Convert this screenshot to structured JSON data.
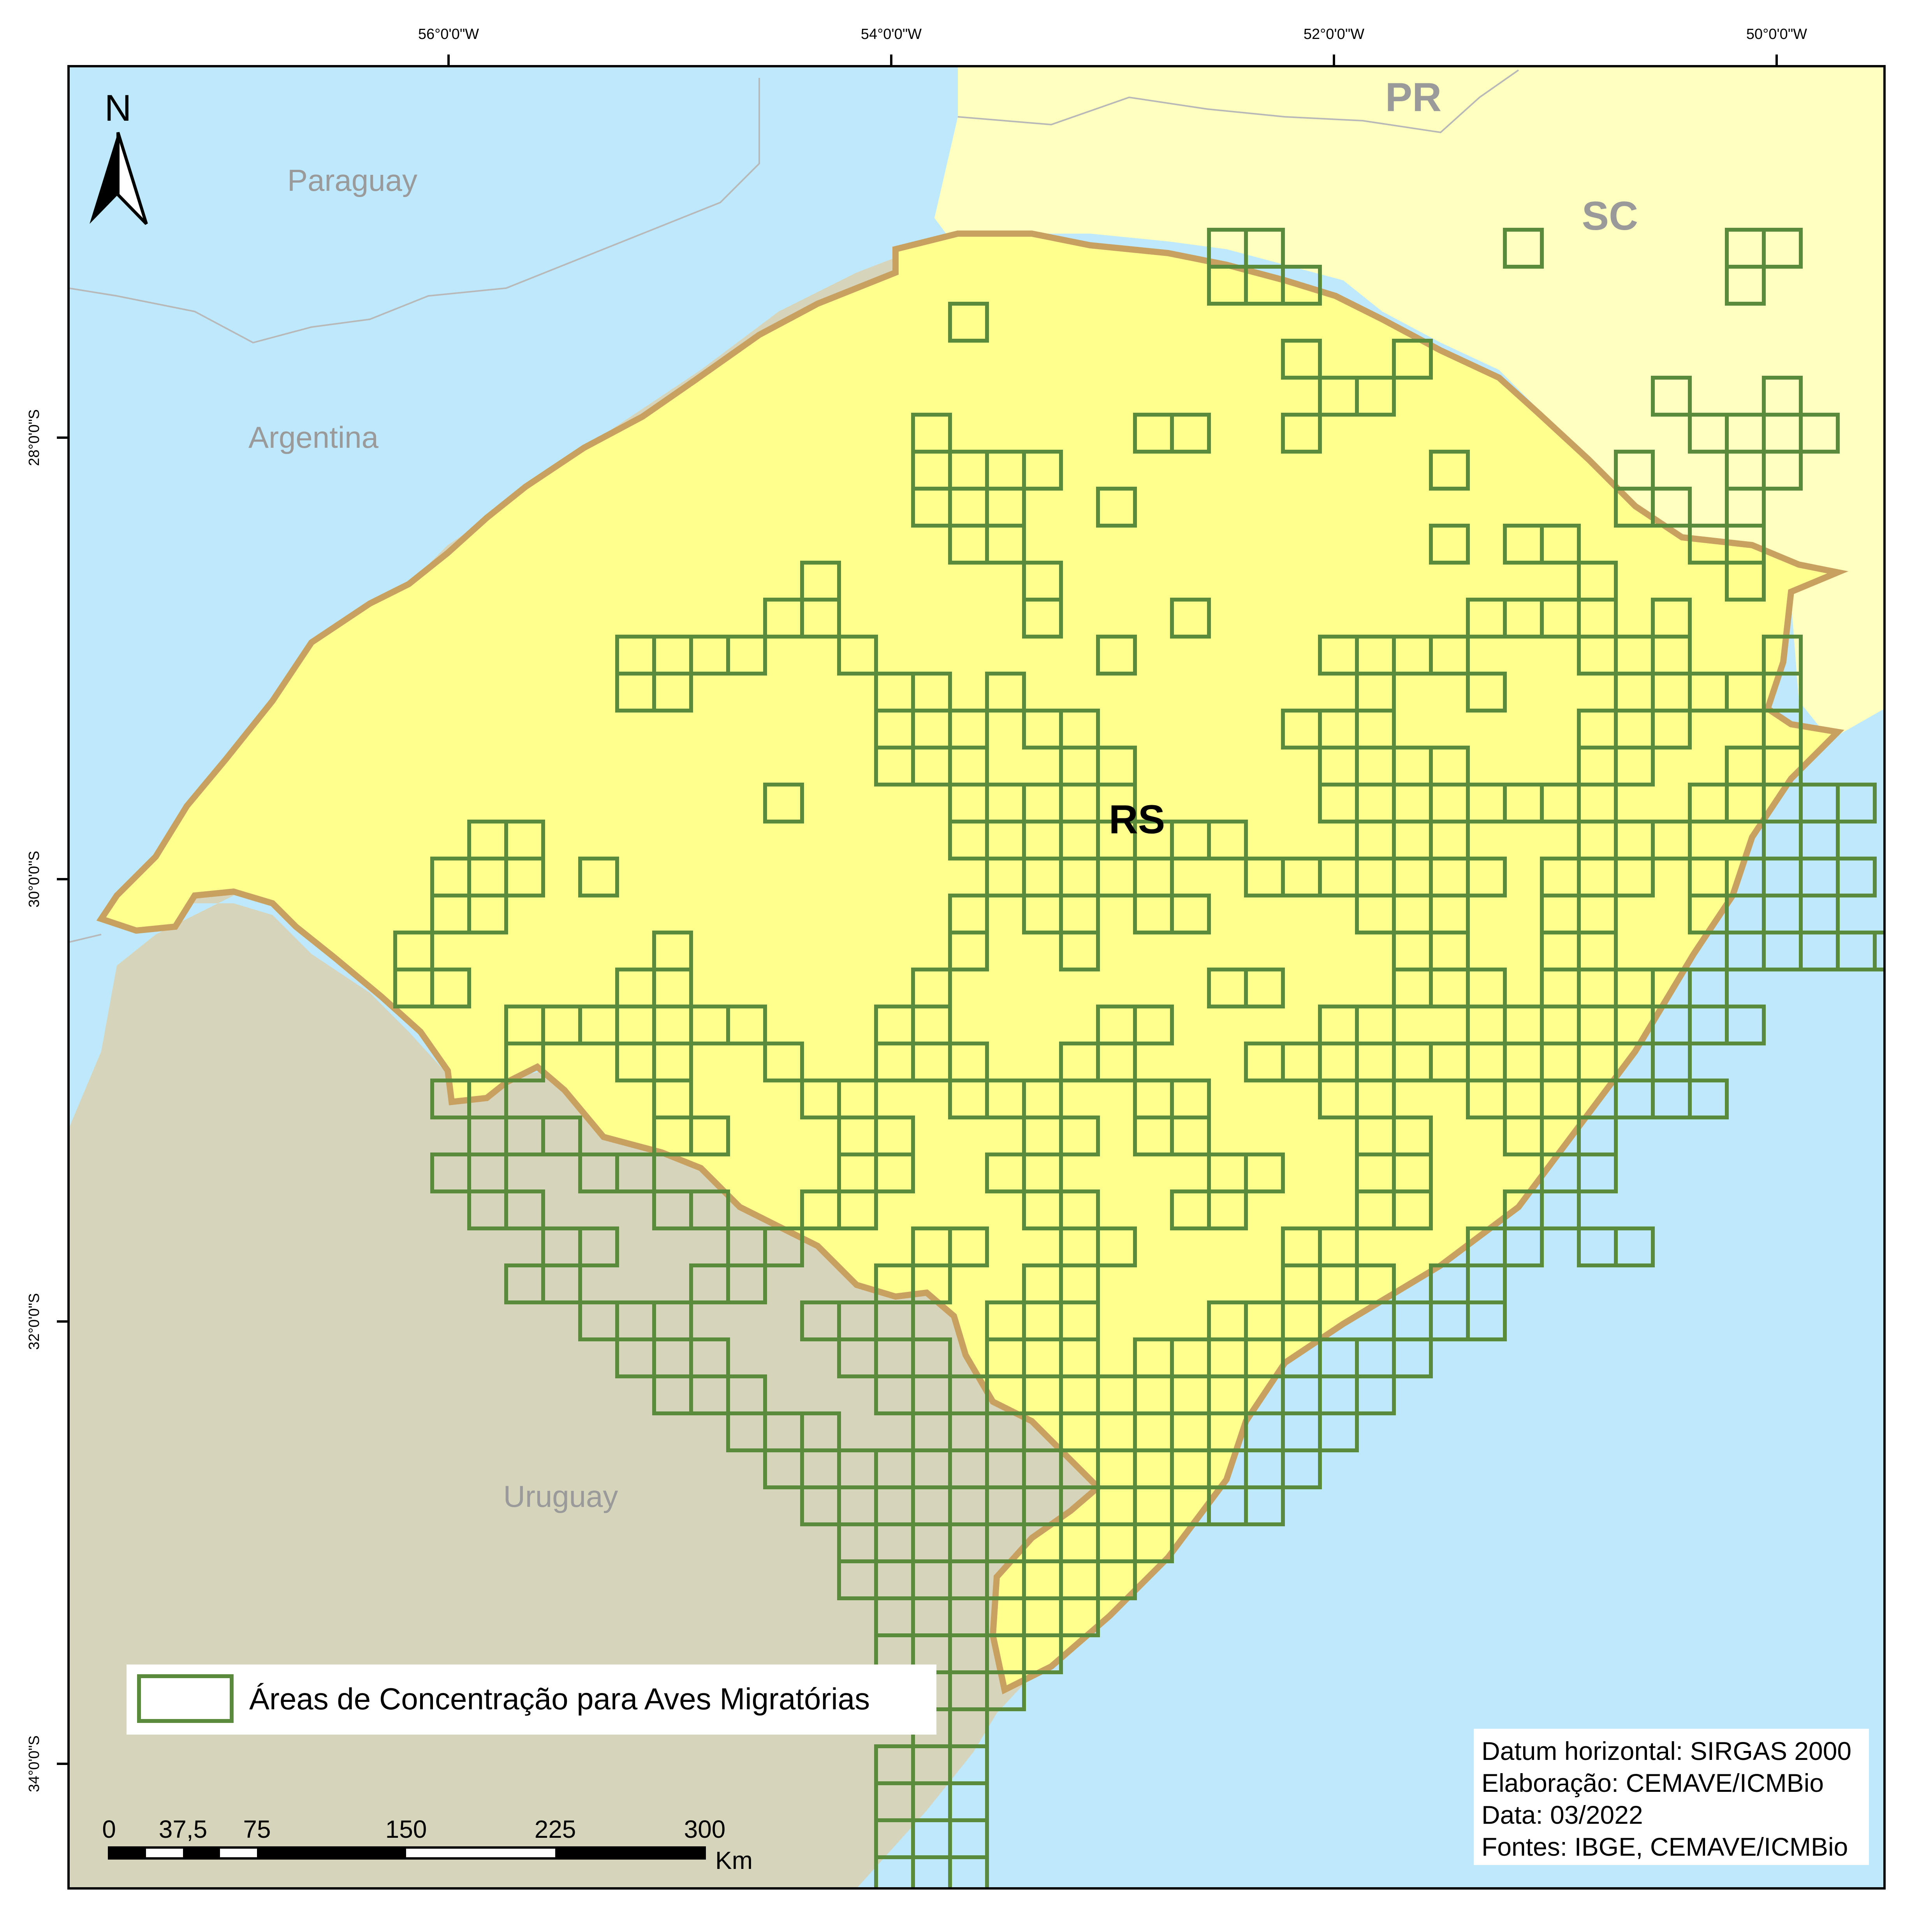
{
  "map": {
    "countries": [
      "Paraguay",
      "Argentina",
      "Uruguay"
    ],
    "states": [
      "PR",
      "SC"
    ],
    "focus_state": "RS",
    "north_label": "N",
    "longitude_ticks": [
      "56°0'0\"W",
      "54°0'0\"W",
      "52°0'0\"W",
      "50°0'0\"W"
    ],
    "latitude_ticks": [
      "28°0'0\"S",
      "30°0'0\"S",
      "32°0'0\"S",
      "34°0'0\"S"
    ],
    "colors": {
      "neighbor_countries": "#d6d5bc",
      "neighbor_states": "#ffffc0",
      "rio_grande_do_sul": "#ffff8e",
      "state_border": "#c8a060",
      "ocean": "#bee8fc",
      "grid_cells": "#5a8a3c"
    }
  },
  "legend": {
    "label": "Áreas de Concentração para Aves Migratórias"
  },
  "info": {
    "datum": "Datum horizontal: SIRGAS 2000",
    "elaboracao": "Elaboração: CEMAVE/ICMBio",
    "data": "Data: 03/2022",
    "fontes": "Fontes: IBGE, CEMAVE/ICMBio"
  },
  "scale_bar": {
    "labels": [
      "0",
      "37,5",
      "75",
      "150",
      "225",
      "300"
    ],
    "unit": "Km"
  }
}
